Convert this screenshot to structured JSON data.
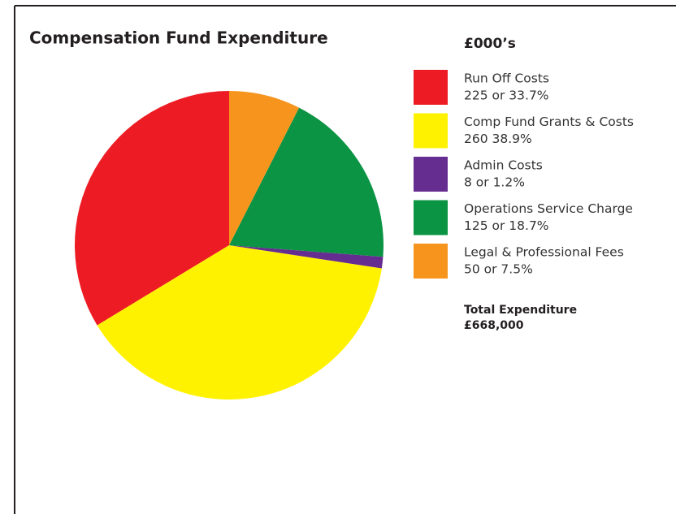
{
  "chart_data": {
    "type": "pie",
    "title": "Compensation Fund Expenditure",
    "subtitle": "£000’s",
    "categories": [
      "Run Off Costs",
      "Comp Fund Grants & Costs",
      "Admin Costs",
      "Operations Service Charge",
      "Legal & Professional Fees"
    ],
    "values": [
      225,
      260,
      8,
      125,
      50
    ],
    "value_labels": [
      "225 or 33.7%",
      "260 38.9%",
      "8 or 1.2%",
      "125 or 18.7%",
      "50 or 7.5%"
    ],
    "colors": [
      "#ed1c24",
      "#fff200",
      "#662d91",
      "#0b9444",
      "#f7941d"
    ],
    "annotations": [
      "Total Expenditure",
      "£668,000"
    ],
    "legend": "right"
  }
}
